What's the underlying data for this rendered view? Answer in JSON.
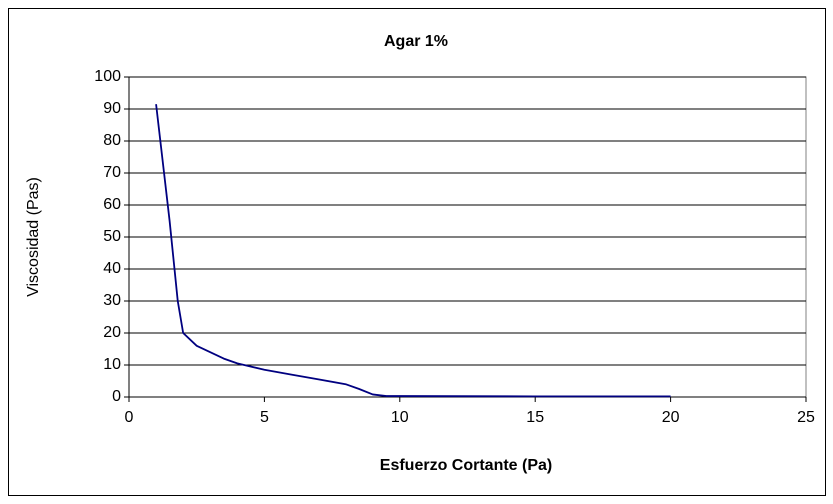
{
  "chart_data": {
    "type": "line",
    "title": "Agar 1%",
    "x_label": "Esfuerzo Cortante (Pa)",
    "y_label": "Viscosidad (Pas)",
    "x": [
      1,
      1.5,
      1.8,
      2,
      2.5,
      3,
      3.5,
      4,
      5,
      6,
      7,
      8,
      8.5,
      9,
      9.5,
      10,
      15,
      20
    ],
    "series": [
      {
        "name": "Agar 1%",
        "color": "#000080",
        "values": [
          91.5,
          55,
          30,
          20,
          16,
          14,
          12,
          10.5,
          8.5,
          7,
          5.5,
          4,
          2.5,
          0.8,
          0.3,
          0.3,
          0.2,
          0.2
        ]
      }
    ],
    "xlim": [
      0,
      25
    ],
    "xticks": [
      0,
      5,
      10,
      15,
      20,
      25
    ],
    "ylim": [
      0,
      100
    ],
    "yticks": [
      0,
      10,
      20,
      30,
      40,
      50,
      60,
      70,
      80,
      90,
      100
    ],
    "grid": true
  }
}
